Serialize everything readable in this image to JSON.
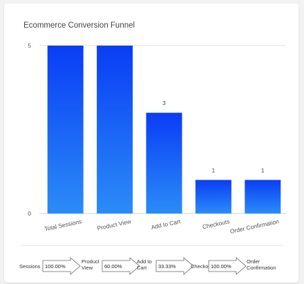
{
  "chart_data": {
    "type": "bar",
    "title": "Ecommerce Conversion Funnel",
    "categories": [
      "Total Sessions",
      "Product View",
      "Add to Cart",
      "Checkouts",
      "Order Confirmation"
    ],
    "values": [
      5,
      5,
      3,
      1,
      1
    ],
    "data_labels": [
      "",
      "",
      "3",
      "1",
      "1"
    ],
    "ylim": [
      0,
      5
    ],
    "yticks": [
      "0",
      "5"
    ],
    "grid": true,
    "colors": {
      "bar_top": "#0a3df5",
      "bar_bottom": "#2b8cf7"
    }
  },
  "funnel_strip": {
    "steps": [
      {
        "label": "Sessions",
        "pct": "100.00%"
      },
      {
        "label": "Product\nView",
        "pct": "60.00%"
      },
      {
        "label": "Add to\nCart",
        "pct": "33.33%"
      },
      {
        "label": "Checkouts",
        "pct": "100.00%"
      },
      {
        "label": "Order\nConfirmation",
        "pct": ""
      }
    ]
  }
}
